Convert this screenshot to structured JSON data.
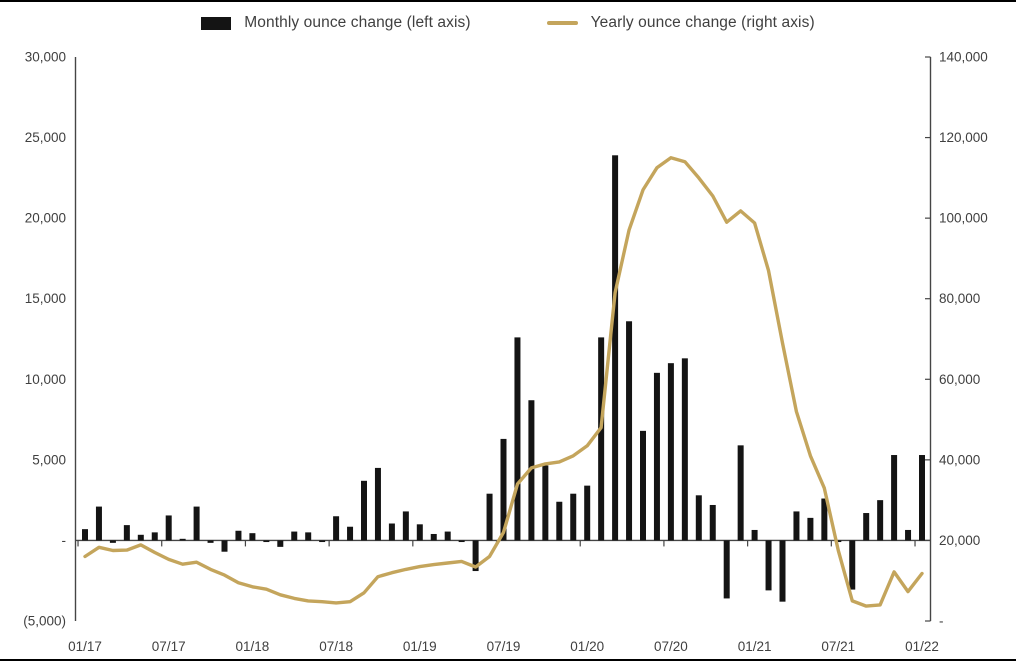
{
  "legend": {
    "monthly_label": "Monthly ounce change (left axis)",
    "yearly_label": "Yearly ounce change (right axis)"
  },
  "chart_data": {
    "type": "combo-bar-line",
    "title": "",
    "grid": false,
    "legend_position": "top",
    "categories": [
      "01/17",
      "02/17",
      "03/17",
      "04/17",
      "05/17",
      "06/17",
      "07/17",
      "08/17",
      "09/17",
      "10/17",
      "11/17",
      "12/17",
      "01/18",
      "02/18",
      "03/18",
      "04/18",
      "05/18",
      "06/18",
      "07/18",
      "08/18",
      "09/18",
      "10/18",
      "11/18",
      "12/18",
      "01/19",
      "02/19",
      "03/19",
      "04/19",
      "05/19",
      "06/19",
      "07/19",
      "08/19",
      "09/19",
      "10/19",
      "11/19",
      "12/19",
      "01/20",
      "02/20",
      "03/20",
      "04/20",
      "05/20",
      "06/20",
      "07/20",
      "08/20",
      "09/20",
      "10/20",
      "11/20",
      "12/20",
      "01/21",
      "02/21",
      "03/21",
      "04/21",
      "05/21",
      "06/21",
      "07/21",
      "08/21",
      "09/21",
      "10/21",
      "11/21",
      "12/21",
      "01/22"
    ],
    "series": [
      {
        "name": "Monthly ounce change (left axis)",
        "type": "bar",
        "axis": "left",
        "color": "#141414",
        "values": [
          700,
          2100,
          -150,
          950,
          350,
          500,
          1550,
          100,
          2100,
          -150,
          -700,
          600,
          450,
          -100,
          -400,
          550,
          500,
          -100,
          1500,
          850,
          3700,
          4500,
          1050,
          1800,
          1000,
          400,
          550,
          -100,
          -1900,
          2900,
          6300,
          12600,
          8700,
          4650,
          2400,
          2900,
          3400,
          12600,
          23900,
          13600,
          6800,
          10400,
          11000,
          11300,
          2800,
          2200,
          -3600,
          5900,
          650,
          -3100,
          -3800,
          1800,
          1400,
          2600,
          -100,
          -3050,
          1700,
          2500,
          5300,
          650,
          5300
        ]
      },
      {
        "name": "Yearly ounce change (right axis)",
        "type": "line",
        "axis": "right",
        "color": "#c4a55c",
        "values": [
          16000,
          18300,
          17500,
          17600,
          18900,
          17000,
          15300,
          14100,
          14600,
          12800,
          11400,
          9500,
          8500,
          7900,
          6500,
          5600,
          5000,
          4800,
          4500,
          4800,
          7000,
          11000,
          12000,
          12800,
          13500,
          14000,
          14400,
          14800,
          13400,
          16000,
          22000,
          34000,
          38000,
          39000,
          39500,
          41000,
          43500,
          48000,
          81500,
          97000,
          107000,
          112500,
          115000,
          114000,
          110000,
          105500,
          99000,
          101800,
          98800,
          87000,
          69000,
          52000,
          41000,
          33000,
          17500,
          5000,
          3700,
          4000,
          12200,
          7300,
          11800
        ]
      }
    ],
    "left_axis": {
      "min": -5000,
      "max": 30000,
      "tick_step": 5000,
      "tick_labels": [
        "(5,000)",
        "-",
        "5,000",
        "10,000",
        "15,000",
        "20,000",
        "25,000",
        "30,000"
      ]
    },
    "right_axis": {
      "min": 0,
      "max": 140000,
      "tick_step": 20000,
      "tick_labels": [
        "-",
        "20,000",
        "40,000",
        "60,000",
        "80,000",
        "100,000",
        "120,000",
        "140,000"
      ]
    },
    "x_tick_labels": [
      "01/17",
      "07/17",
      "01/18",
      "07/18",
      "01/19",
      "07/19",
      "01/20",
      "07/20",
      "01/21",
      "07/21",
      "01/22"
    ],
    "axis_color": "#454545",
    "text_color": "#404040"
  }
}
